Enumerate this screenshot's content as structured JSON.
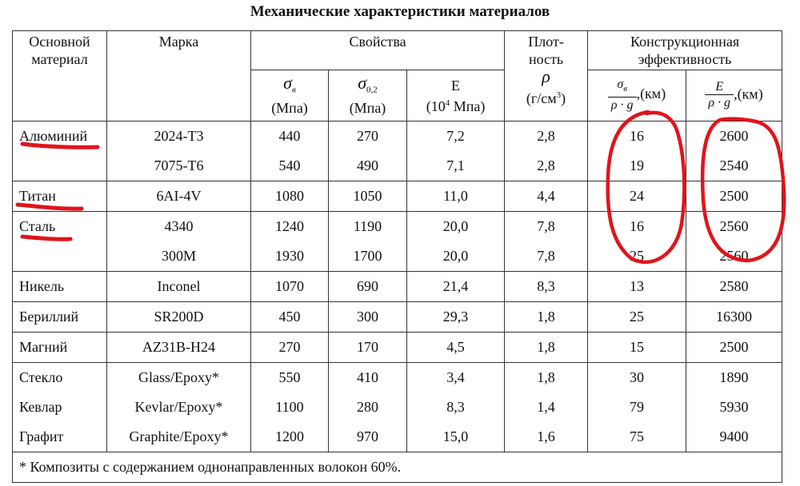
{
  "title": "Механические характеристики материалов",
  "headers": {
    "material": "Основной материал",
    "grade": "Марка",
    "props": "Свойства",
    "density": "Плот-ность",
    "efficiency": "Конструкционная эффективность",
    "sigma_b": "σ",
    "sigma_b_sub": "в",
    "sigma_b_unit": "(Мпа)",
    "sigma_02": "σ",
    "sigma_02_sub": "0,2",
    "sigma_02_unit": "(Мпа)",
    "E": "E",
    "E_unit_a": "(10",
    "E_unit_exp": "4",
    "E_unit_b": " Мпа)",
    "rho": "ρ",
    "rho_unit_a": "(г/см",
    "rho_unit_exp": "3",
    "rho_unit_b": ")",
    "eff1_num": "σ",
    "eff1_num_sub": "в",
    "eff1_den": "ρ · g",
    "eff1_unit": ",(км)",
    "eff2_num": "E",
    "eff2_den": "ρ · g",
    "eff2_unit": ",(км)"
  },
  "groups": [
    {
      "material": [
        "Алюминий"
      ],
      "grades": [
        "2024-Т3",
        "7075-Т6"
      ],
      "sb": [
        "440",
        "540"
      ],
      "s02": [
        "270",
        "490"
      ],
      "E": [
        "7,2",
        "7,1"
      ],
      "rho": [
        "2,8",
        "2,8"
      ],
      "eff1": [
        "16",
        "19"
      ],
      "eff2": [
        "2600",
        "2540"
      ]
    },
    {
      "material": [
        "Титан"
      ],
      "grades": [
        "6AI-4V"
      ],
      "sb": [
        "1080"
      ],
      "s02": [
        "1050"
      ],
      "E": [
        "11,0"
      ],
      "rho": [
        "4,4"
      ],
      "eff1": [
        "24"
      ],
      "eff2": [
        "2500"
      ]
    },
    {
      "material": [
        "Сталь"
      ],
      "grades": [
        "4340",
        "300M"
      ],
      "sb": [
        "1240",
        "1930"
      ],
      "s02": [
        "1190",
        "1700"
      ],
      "E": [
        "20,0",
        "20,0"
      ],
      "rho": [
        "7,8",
        "7,8"
      ],
      "eff1": [
        "16",
        "25"
      ],
      "eff2": [
        "2560",
        "2560"
      ]
    },
    {
      "material": [
        "Никель"
      ],
      "grades": [
        "Inconel"
      ],
      "sb": [
        "1070"
      ],
      "s02": [
        "690"
      ],
      "E": [
        "21,4"
      ],
      "rho": [
        "8,3"
      ],
      "eff1": [
        "13"
      ],
      "eff2": [
        "2580"
      ]
    },
    {
      "material": [
        "Бериллий"
      ],
      "grades": [
        "SR200D"
      ],
      "sb": [
        "450"
      ],
      "s02": [
        "300"
      ],
      "E": [
        "29,3"
      ],
      "rho": [
        "1,8"
      ],
      "eff1": [
        "25"
      ],
      "eff2": [
        "16300"
      ]
    },
    {
      "material": [
        "Магний"
      ],
      "grades": [
        "AZ31B-H24"
      ],
      "sb": [
        "270"
      ],
      "s02": [
        "170"
      ],
      "E": [
        "4,5"
      ],
      "rho": [
        "1,8"
      ],
      "eff1": [
        "15"
      ],
      "eff2": [
        "2500"
      ]
    },
    {
      "material": [
        "Стекло",
        "Кевлар",
        "Графит"
      ],
      "grades": [
        "Glass/Epoxy*",
        "Kevlar/Epoxy*",
        "Graphite/Epoxy*"
      ],
      "sb": [
        "550",
        "1100",
        "1200"
      ],
      "s02": [
        "410",
        "280",
        "970"
      ],
      "E": [
        "3,4",
        "8,3",
        "15,0"
      ],
      "rho": [
        "1,8",
        "1,4",
        "1,6"
      ],
      "eff1": [
        "30",
        "79",
        "75"
      ],
      "eff2": [
        "1890",
        "5930",
        "9400"
      ]
    }
  ],
  "footnote": "* Композиты с содержанием однонаправленных волокон 60%.",
  "annotation_color": "#e0141b"
}
